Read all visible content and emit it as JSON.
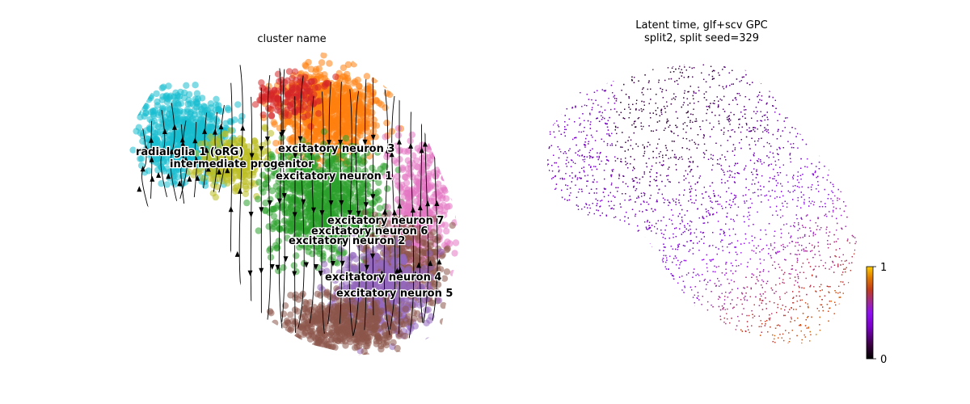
{
  "chart_data": [
    {
      "type": "scatter",
      "title": "cluster name",
      "xlabel": "",
      "ylabel": "",
      "overlay": "velocity streamlines",
      "legend": "on data",
      "clusters": [
        {
          "name": "radial glia 1 (oRG)",
          "color": "#17becf"
        },
        {
          "name": "intermediate progenitor",
          "color": "#bcbd22"
        },
        {
          "name": "excitatory neuron 3",
          "color": "#ff7f0e"
        },
        {
          "name": "excitatory neuron 1",
          "color": "#2ca02c"
        },
        {
          "name": "excitatory neuron 7",
          "color": "#e377c2"
        },
        {
          "name": "excitatory neuron 6",
          "color": "#8c564b"
        },
        {
          "name": "excitatory neuron 2",
          "color": "#d62728"
        },
        {
          "name": "excitatory neuron 4",
          "color": "#9467bd"
        },
        {
          "name": "excitatory neuron 5",
          "color": "#8c564b"
        }
      ]
    },
    {
      "type": "scatter",
      "title_line1": "Latent time, glf+scv GPC",
      "title_line2": "split2, split seed=329",
      "colorbar": {
        "min": 0,
        "max": 1,
        "min_label": "0",
        "max_label": "1",
        "colormap": "gnuplot"
      },
      "xlabel": "",
      "ylabel": ""
    }
  ]
}
